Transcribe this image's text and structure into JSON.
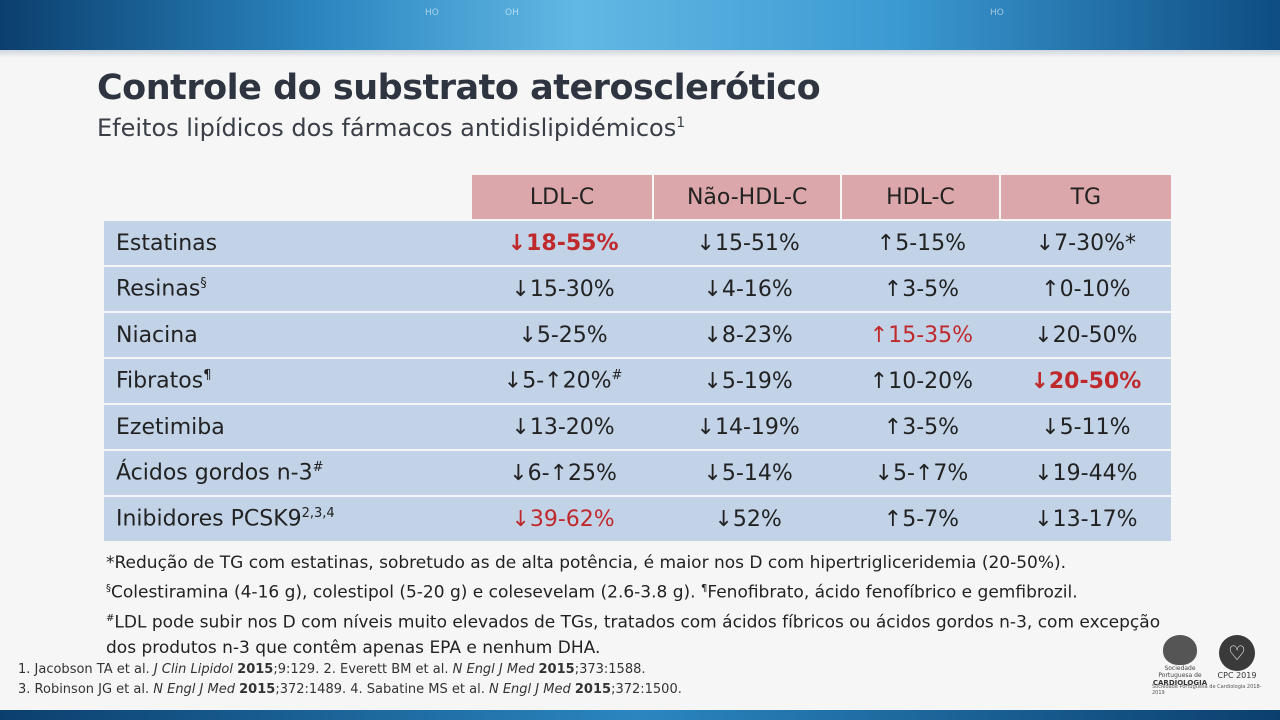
{
  "header": {
    "title": "Controle do substrato aterosclerótico",
    "subtitle": "Efeitos lipídicos dos fármacos antidislipidémicos",
    "subtitle_sup": "1"
  },
  "table": {
    "columns": [
      "LDL-C",
      "Não-HDL-C",
      "HDL-C",
      "TG"
    ],
    "rows": [
      {
        "drug": "Estatinas",
        "drug_sup": "",
        "ldl": "↓18-55%",
        "nonhdl": "↓15-51%",
        "hdl": "↑5-15%",
        "tg": "↓7-30%*"
      },
      {
        "drug": "Resinas",
        "drug_sup": "§",
        "ldl": "↓15-30%",
        "nonhdl": "↓4-16%",
        "hdl": "↑3-5%",
        "tg": "↑0-10%"
      },
      {
        "drug": "Niacina",
        "drug_sup": "",
        "ldl": "↓5-25%",
        "nonhdl": "↓8-23%",
        "hdl": "↑15-35%",
        "tg": "↓20-50%"
      },
      {
        "drug": "Fibratos",
        "drug_sup": "¶",
        "ldl": "↓5-↑20%",
        "ldl_sup": "#",
        "nonhdl": "↓5-19%",
        "hdl": "↑10-20%",
        "tg": "↓20-50%"
      },
      {
        "drug": "Ezetimiba",
        "drug_sup": "",
        "ldl": "↓13-20%",
        "nonhdl": "↓14-19%",
        "hdl": "↑3-5%",
        "tg": "↓5-11%"
      },
      {
        "drug": "Ácidos gordos n-3",
        "drug_sup": "#",
        "ldl": "↓6-↑25%",
        "nonhdl": "↓5-14%",
        "hdl": "↓5-↑7%",
        "tg": "↓19-44%"
      },
      {
        "drug": "Inibidores PCSK9",
        "drug_sup": "2,3,4",
        "ldl": "↓39-62%",
        "nonhdl": "↓52%",
        "hdl": "↑5-7%",
        "tg": "↓13-17%"
      }
    ]
  },
  "notes": {
    "line1": "*Redução de TG com estatinas, sobretudo as de alta potência, é maior nos D com hipertrigliceridemia (20-50%).",
    "line2_sup1": "§",
    "line2_a": "Colestiramina (4-16 g), colestipol (5-20 g) e colesevelam (2.6-3.8 g). ",
    "line2_sup2": "¶",
    "line2_b": "Fenofibrato, ácido fenofíbrico e gemfibrozil.",
    "line3_sup": "#",
    "line3": "LDL pode subir nos D com níveis muito elevados de TGs, tratados com ácidos fíbricos ou ácidos gordos n-3, com excepção dos produtos n-3 que contêm apenas EPA e nenhum DHA."
  },
  "refs": {
    "r1_a": "1. Jacobson TA et al. ",
    "r1_j": "J Clin Lipidol",
    "r1_y": "2015",
    "r1_b": ";9:129. 2. Everett BM et al. ",
    "r1_j2": "N Engl J Med",
    "r1_y2": "2015",
    "r1_c": ";373:1588.",
    "r2_a": "3. Robinson JG et al. ",
    "r2_j": "N Engl J Med",
    "r2_y": "2015",
    "r2_b": ";372:1489. 4. Sabatine MS et al. ",
    "r2_j2": "N Engl J Med",
    "r2_y2": "2015",
    "r2_c": ";372:1500."
  },
  "logos": {
    "spc_small": "Sociedade Portuguesa de",
    "spc_big": "CARDIOLOGIA",
    "cpc": "CPC 2019",
    "footer": "Sociedade Portuguesa de Cardiologia 2018-2019"
  }
}
